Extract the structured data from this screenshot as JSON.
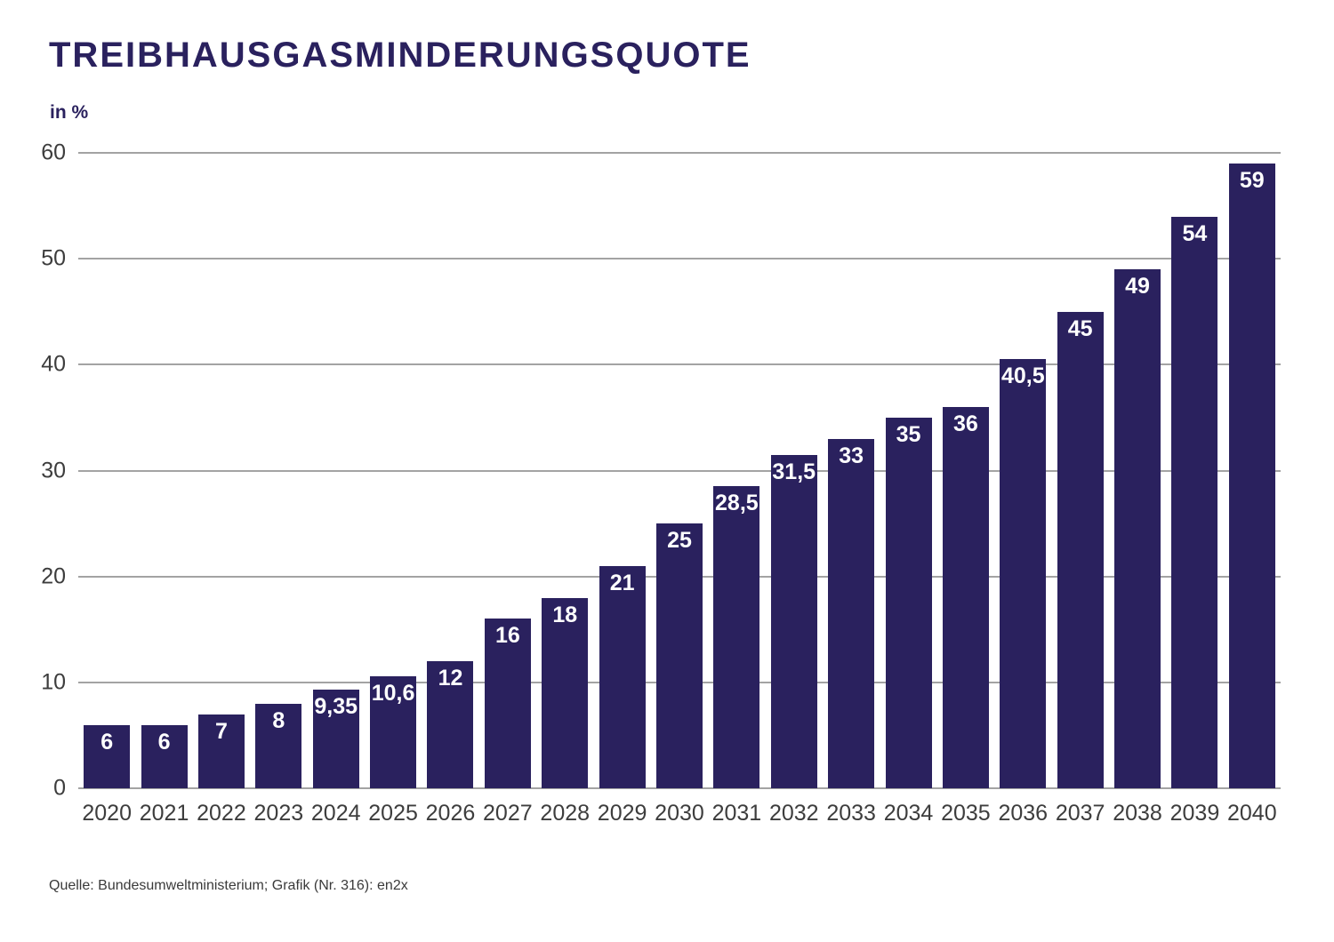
{
  "header": {
    "title": "TREIBHAUSGASMINDERUNGSQUOTE",
    "unit_label": "in %"
  },
  "footer": {
    "source": "Quelle: Bundesumweltministerium; Grafik (Nr. 316): en2x"
  },
  "chart_data": {
    "type": "bar",
    "title": "TREIBHAUSGASMINDERUNGSQUOTE",
    "xlabel": "",
    "ylabel": "in %",
    "categories": [
      "2020",
      "2021",
      "2022",
      "2023",
      "2024",
      "2025",
      "2026",
      "2027",
      "2028",
      "2029",
      "2030",
      "2031",
      "2032",
      "2033",
      "2034",
      "2035",
      "2036",
      "2037",
      "2038",
      "2039",
      "2040"
    ],
    "values": [
      6,
      6,
      7,
      8,
      9.35,
      10.6,
      12,
      16,
      18,
      21,
      25,
      28.5,
      31.5,
      33,
      35,
      36,
      40.5,
      45,
      49,
      54,
      59
    ],
    "value_labels": [
      "6",
      "6",
      "7",
      "8",
      "9,35",
      "10,6",
      "12",
      "16",
      "18",
      "21",
      "25",
      "28,5",
      "31,5",
      "33",
      "35",
      "36",
      "40,5",
      "45",
      "49",
      "54",
      "59"
    ],
    "ylim": [
      0,
      60
    ],
    "yticks": [
      0,
      10,
      20,
      30,
      40,
      50,
      60
    ],
    "grid": "horizontal",
    "legend": "none",
    "value_label_position": "inside-top",
    "colors": {
      "bar": "#2a215e",
      "value_label": "#ffffff",
      "axis_text": "#3d3d3d",
      "gridline": "#a3a3a3",
      "title": "#2a215e"
    }
  }
}
